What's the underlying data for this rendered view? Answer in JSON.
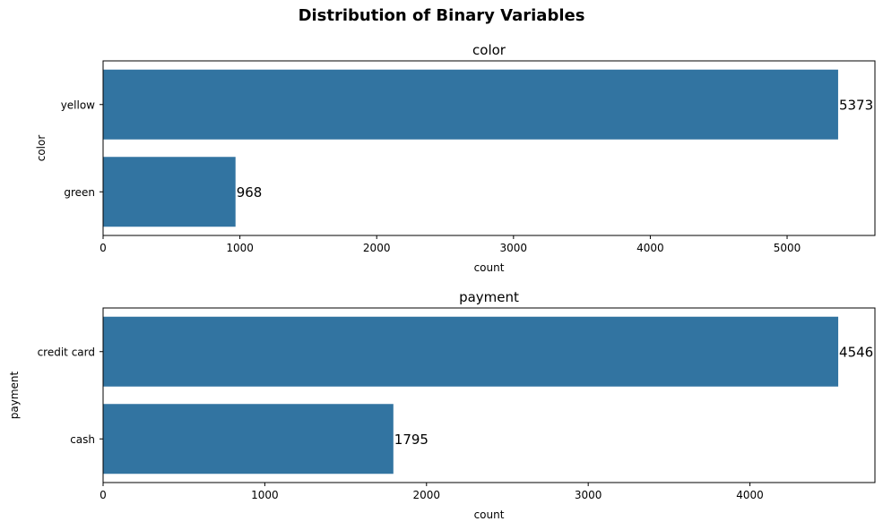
{
  "figure": {
    "title": "Distribution of Binary Variables"
  },
  "colors": {
    "bar": "#3274a1",
    "axis": "#000000"
  },
  "chart_data": [
    {
      "type": "bar",
      "orientation": "horizontal",
      "title": "color",
      "ylabel": "color",
      "xlabel": "count",
      "categories": [
        "yellow",
        "green"
      ],
      "values": [
        5373,
        968
      ],
      "data_labels": [
        "5373",
        "968"
      ],
      "xlim": [
        0,
        5642
      ],
      "xticks": [
        0,
        1000,
        2000,
        3000,
        4000,
        5000
      ],
      "xtick_labels": [
        "0",
        "1000",
        "2000",
        "3000",
        "4000",
        "5000"
      ],
      "grid": false,
      "legend": "none"
    },
    {
      "type": "bar",
      "orientation": "horizontal",
      "title": "payment",
      "ylabel": "payment",
      "xlabel": "count",
      "categories": [
        "credit card",
        "cash"
      ],
      "values": [
        4546,
        1795
      ],
      "data_labels": [
        "4546",
        "1795"
      ],
      "xlim": [
        0,
        4773
      ],
      "xticks": [
        0,
        1000,
        2000,
        3000,
        4000
      ],
      "xtick_labels": [
        "0",
        "1000",
        "2000",
        "3000",
        "4000"
      ],
      "grid": false,
      "legend": "none"
    }
  ]
}
